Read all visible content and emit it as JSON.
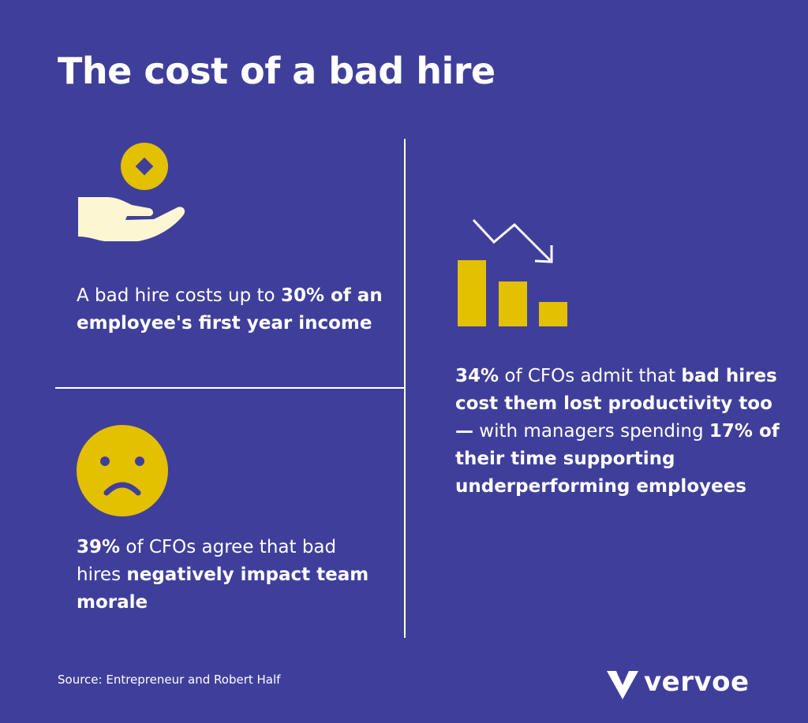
{
  "title": "The cost of a bad hire",
  "stats": [
    {
      "icon": "hand-coin-icon",
      "parts": [
        {
          "text": "A bad hire costs up to ",
          "bold": false
        },
        {
          "text": "30% of an employee's first year income",
          "bold": true
        }
      ]
    },
    {
      "icon": "sad-face-icon",
      "parts": [
        {
          "text": "39%",
          "bold": true
        },
        {
          "text": " of CFOs agree that bad hires ",
          "bold": false
        },
        {
          "text": "negatively impact team morale",
          "bold": true
        }
      ]
    },
    {
      "icon": "declining-bar-chart-icon",
      "parts": [
        {
          "text": "34%",
          "bold": true
        },
        {
          "text": " of CFOs admit that ",
          "bold": false
        },
        {
          "text": "bad hires cost them lost productivity too —",
          "bold": true
        },
        {
          "text": " with managers spending ",
          "bold": false
        },
        {
          "text": "17% of their time supporting underperforming employees",
          "bold": true
        }
      ]
    }
  ],
  "source": "Source: Entrepreneur and Robert Half",
  "brand": {
    "name": "vervoe",
    "icon": "vervoe-logo-icon"
  },
  "colors": {
    "background": "#3f3f9b",
    "accent": "#e3c000",
    "hand": "#fdf6d3",
    "text": "#ffffff"
  }
}
